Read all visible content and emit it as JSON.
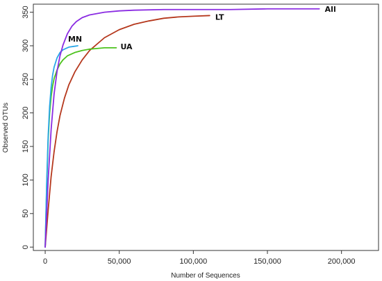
{
  "chart_data": {
    "type": "line",
    "title": "",
    "xlabel": "Number of Sequences",
    "ylabel": "Observed OTUs",
    "xlim": [
      -8000,
      225000
    ],
    "ylim": [
      -5,
      362
    ],
    "x_ticks": [
      0,
      50000,
      100000,
      150000,
      200000
    ],
    "x_tick_labels": [
      "0",
      "50,000",
      "100,000",
      "150,000",
      "200,000"
    ],
    "y_ticks": [
      0,
      50,
      100,
      150,
      200,
      250,
      300,
      350
    ],
    "y_tick_labels": [
      "0",
      "50",
      "100",
      "150",
      "200",
      "250",
      "300",
      "350"
    ],
    "grid": false,
    "series": [
      {
        "name": "All",
        "color": "#8a2be2",
        "x": [
          0,
          2000,
          4000,
          6000,
          8000,
          10000,
          12000,
          15000,
          18000,
          21000,
          25000,
          30000,
          40000,
          50000,
          60000,
          80000,
          100000,
          125000,
          150000,
          185000
        ],
        "y": [
          0,
          100,
          175,
          228,
          262,
          285,
          301,
          318,
          329,
          336,
          342,
          346,
          350,
          352,
          353,
          354,
          354,
          354,
          355,
          355
        ]
      },
      {
        "name": "LT",
        "color": "#b5371c",
        "x": [
          0,
          2000,
          4000,
          6000,
          8000,
          10000,
          13000,
          16000,
          20000,
          25000,
          30000,
          40000,
          50000,
          60000,
          70000,
          80000,
          90000,
          100000,
          111000
        ],
        "y": [
          0,
          55,
          105,
          142,
          172,
          196,
          222,
          242,
          261,
          279,
          293,
          312,
          324,
          332,
          337,
          341,
          343,
          344,
          345
        ]
      },
      {
        "name": "MN",
        "color": "#2aa7e8",
        "x": [
          0,
          1000,
          2000,
          3000,
          4000,
          5000,
          6000,
          8000,
          10000,
          12000,
          14000,
          16000,
          19000,
          22000
        ],
        "y": [
          0,
          95,
          165,
          210,
          238,
          256,
          268,
          282,
          290,
          294,
          296,
          298,
          299,
          300
        ]
      },
      {
        "name": "UA",
        "color": "#4cc21c",
        "x": [
          0,
          1000,
          2000,
          3000,
          4000,
          5000,
          6000,
          8000,
          10000,
          12000,
          15000,
          20000,
          25000,
          30000,
          35000,
          40000,
          48000
        ],
        "y": [
          0,
          90,
          160,
          200,
          224,
          240,
          251,
          264,
          273,
          279,
          285,
          290,
          293,
          295,
          296,
          297,
          297
        ]
      }
    ],
    "annotations": [
      {
        "text": "All",
        "series": "All"
      },
      {
        "text": "LT",
        "series": "LT"
      },
      {
        "text": "MN",
        "series": "MN"
      },
      {
        "text": "UA",
        "series": "UA"
      }
    ]
  }
}
